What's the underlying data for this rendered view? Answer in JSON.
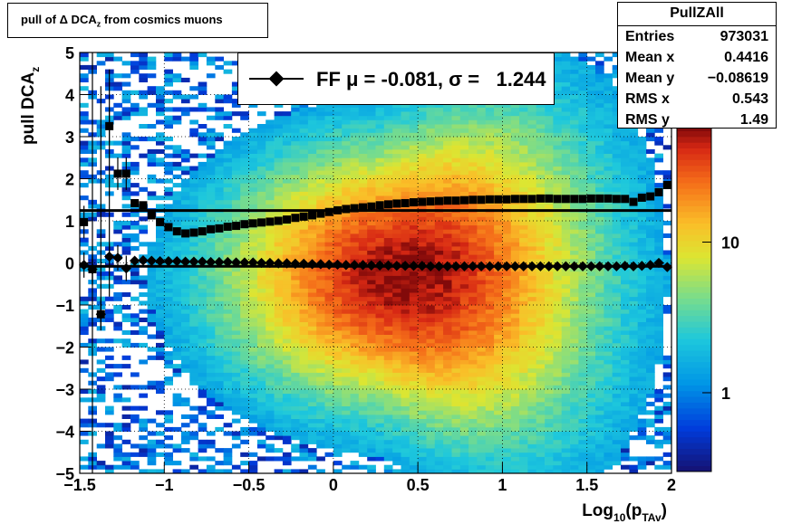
{
  "title": "pull of Δ DCA_z from cosmics muons",
  "stats": {
    "name": "PullZAll",
    "rows": [
      {
        "label": "Entries",
        "value": "973031"
      },
      {
        "label": "Mean x",
        "value": "0.4416"
      },
      {
        "label": "Mean y",
        "value": "−0.08619"
      },
      {
        "label": "RMS x",
        "value": "0.543"
      },
      {
        "label": "RMS y",
        "value": "1.49"
      }
    ]
  },
  "chart_data": {
    "type": "heatmap",
    "xlabel": "Log10(pTAv)",
    "ylabel": "pull DCAz",
    "xlim": [
      -1.5,
      2
    ],
    "ylim": [
      -5,
      5
    ],
    "xticks": [
      "−1.5",
      "−1",
      "−0.5",
      "0",
      "0.5",
      "1",
      "1.5",
      "2"
    ],
    "yticks": [
      "−5",
      "−4",
      "−3",
      "−2",
      "−1",
      "0",
      "1",
      "2",
      "3",
      "4",
      "5"
    ],
    "colorbar": {
      "scale": "log",
      "labels": [
        "1",
        "10"
      ],
      "range": [
        0.3,
        60
      ]
    },
    "legend": {
      "label": "FF μ = -0.081, σ =   1.244",
      "placement": "top"
    },
    "hlines": [
      1.244,
      -0.081
    ],
    "series": [
      {
        "name": "sigma",
        "x": [
          -1.475,
          -1.425,
          -1.375,
          -1.325,
          -1.275,
          -1.225,
          -1.175,
          -1.125,
          -1.075,
          -1.025,
          -0.975,
          -0.925,
          -0.875,
          -0.825,
          -0.775,
          -0.725,
          -0.675,
          -0.625,
          -0.575,
          -0.525,
          -0.475,
          -0.425,
          -0.375,
          -0.325,
          -0.275,
          -0.225,
          -0.175,
          -0.125,
          -0.075,
          -0.025,
          0.025,
          0.075,
          0.125,
          0.175,
          0.225,
          0.275,
          0.325,
          0.375,
          0.425,
          0.475,
          0.525,
          0.575,
          0.625,
          0.675,
          0.725,
          0.775,
          0.825,
          0.875,
          0.925,
          0.975,
          1.025,
          1.075,
          1.125,
          1.175,
          1.225,
          1.275,
          1.325,
          1.375,
          1.425,
          1.475,
          1.525,
          1.575,
          1.625,
          1.675,
          1.725,
          1.775,
          1.825,
          1.875,
          1.925,
          1.975
        ],
        "y": [
          0.97,
          -0.15,
          -1.22,
          3.25,
          2.12,
          2.12,
          1.42,
          1.37,
          1.13,
          0.97,
          0.85,
          0.75,
          0.7,
          0.72,
          0.75,
          0.8,
          0.82,
          0.86,
          0.88,
          0.92,
          0.94,
          0.96,
          0.98,
          1.0,
          1.03,
          1.07,
          1.1,
          1.13,
          1.17,
          1.21,
          1.25,
          1.28,
          1.3,
          1.32,
          1.34,
          1.37,
          1.39,
          1.41,
          1.42,
          1.44,
          1.45,
          1.46,
          1.47,
          1.48,
          1.48,
          1.49,
          1.5,
          1.5,
          1.51,
          1.51,
          1.51,
          1.52,
          1.52,
          1.52,
          1.53,
          1.53,
          1.52,
          1.52,
          1.52,
          1.52,
          1.53,
          1.53,
          1.53,
          1.52,
          1.52,
          1.45,
          1.55,
          1.58,
          1.68,
          1.85
        ]
      },
      {
        "name": "mean",
        "x": [
          -1.475,
          -1.425,
          -1.375,
          -1.325,
          -1.275,
          -1.225,
          -1.175,
          -1.125,
          -1.075,
          -1.025,
          -0.975,
          -0.925,
          -0.875,
          -0.825,
          -0.775,
          -0.725,
          -0.675,
          -0.625,
          -0.575,
          -0.525,
          -0.475,
          -0.425,
          -0.375,
          -0.325,
          -0.275,
          -0.225,
          -0.175,
          -0.125,
          -0.075,
          -0.025,
          0.025,
          0.075,
          0.125,
          0.175,
          0.225,
          0.275,
          0.325,
          0.375,
          0.425,
          0.475,
          0.525,
          0.575,
          0.625,
          0.675,
          0.725,
          0.775,
          0.825,
          0.875,
          0.925,
          0.975,
          1.025,
          1.075,
          1.125,
          1.175,
          1.225,
          1.275,
          1.325,
          1.375,
          1.425,
          1.475,
          1.525,
          1.575,
          1.625,
          1.675,
          1.725,
          1.775,
          1.825,
          1.875,
          1.925,
          1.975
        ],
        "y": [
          -0.05,
          -0.15,
          -1.22,
          0.15,
          0.12,
          -0.13,
          0.05,
          0.06,
          0.05,
          0.04,
          0.04,
          0.04,
          0.03,
          0.03,
          0.03,
          0.02,
          0.02,
          0.02,
          0.01,
          0.01,
          0.01,
          0.0,
          0.0,
          -0.01,
          -0.01,
          -0.02,
          -0.02,
          -0.03,
          -0.03,
          -0.04,
          -0.04,
          -0.05,
          -0.05,
          -0.05,
          -0.06,
          -0.06,
          -0.06,
          -0.07,
          -0.07,
          -0.07,
          -0.07,
          -0.08,
          -0.08,
          -0.08,
          -0.08,
          -0.08,
          -0.08,
          -0.08,
          -0.08,
          -0.08,
          -0.08,
          -0.08,
          -0.08,
          -0.08,
          -0.08,
          -0.08,
          -0.08,
          -0.08,
          -0.08,
          -0.08,
          -0.08,
          -0.08,
          -0.08,
          -0.08,
          -0.07,
          -0.08,
          -0.07,
          -0.05,
          0.0,
          -0.1
        ]
      }
    ]
  }
}
